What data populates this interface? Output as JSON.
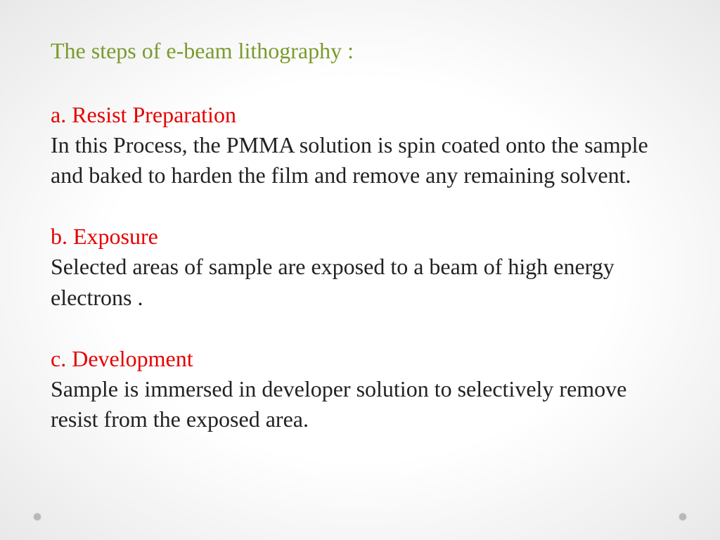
{
  "colors": {
    "title": "#7a9b2e",
    "heading": "#e60000",
    "body": "#222222",
    "dot": "#b8b8b8",
    "background_center": "#ffffff",
    "background_edge": "#e8e8e8"
  },
  "typography": {
    "font_family": "Palatino Linotype, Book Antiqua, Palatino, Georgia, serif",
    "title_fontsize": 32,
    "heading_fontsize": 32,
    "body_fontsize": 32,
    "line_height": 1.35
  },
  "slide": {
    "title": "The steps of e-beam lithography :",
    "sections": [
      {
        "heading": "a. Resist Preparation",
        "body": "In this Process, the PMMA solution is spin coated onto the sample and baked to harden the film and remove any remaining solvent."
      },
      {
        "heading": "b. Exposure",
        "body": "Selected areas of sample are exposed to a beam of high energy electrons ."
      },
      {
        "heading": "c. Development",
        "body": "Sample is immersed in developer solution to selectively remove resist from the exposed area."
      }
    ]
  }
}
